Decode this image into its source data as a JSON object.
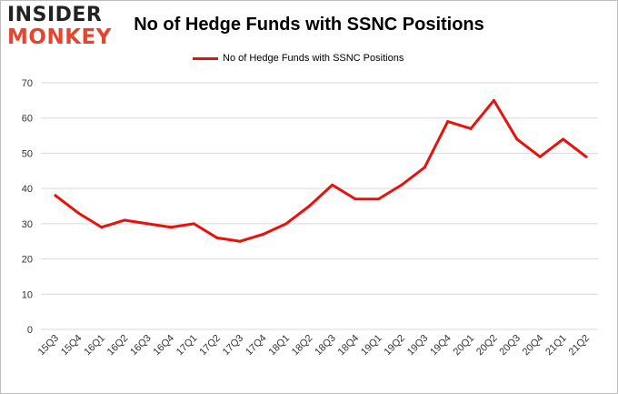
{
  "logo": {
    "line1": "INSIDER",
    "line2": "MONKEY"
  },
  "colors": {
    "series": "#e8120c",
    "grid": "#d9d9d9",
    "brand_red": "#e8432e"
  },
  "chart_data": {
    "type": "line",
    "title": "No of Hedge Funds with SSNC Positions",
    "xlabel": "",
    "ylabel": "",
    "ylim": [
      0,
      70
    ],
    "yticks": [
      0,
      10,
      20,
      30,
      40,
      50,
      60,
      70
    ],
    "grid": true,
    "legend_position": "top",
    "categories": [
      "15Q3",
      "15Q4",
      "16Q1",
      "16Q2",
      "16Q3",
      "16Q4",
      "17Q1",
      "17Q2",
      "17Q3",
      "17Q4",
      "18Q1",
      "18Q2",
      "18Q3",
      "18Q4",
      "19Q1",
      "19Q2",
      "19Q3",
      "19Q4",
      "20Q1",
      "20Q2",
      "20Q3",
      "20Q4",
      "21Q1",
      "21Q2"
    ],
    "series": [
      {
        "name": "No of Hedge Funds with SSNC Positions",
        "values": [
          38,
          33,
          29,
          31,
          30,
          29,
          30,
          26,
          25,
          27,
          30,
          35,
          41,
          37,
          37,
          41,
          46,
          59,
          57,
          65,
          54,
          49,
          54,
          49
        ]
      }
    ]
  }
}
